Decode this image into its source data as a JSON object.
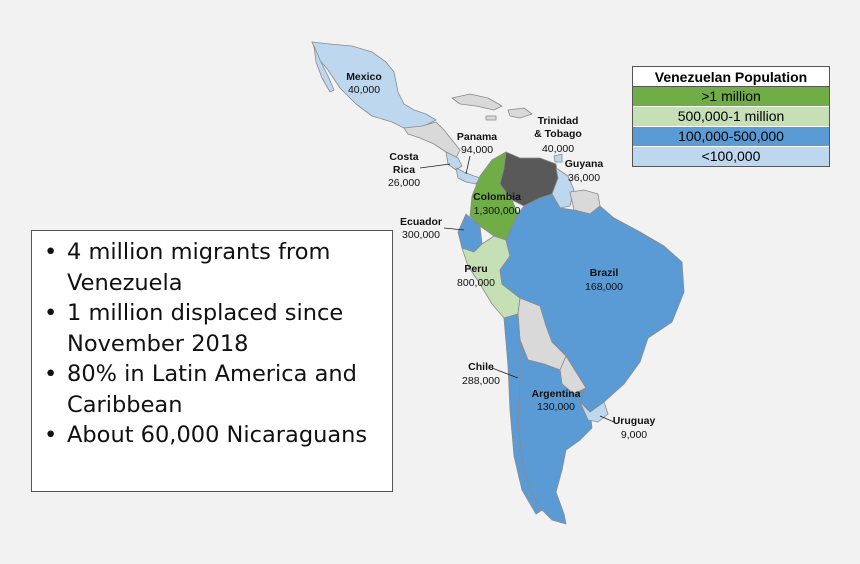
{
  "legend": {
    "title": "Venezuelan Population",
    "items": [
      {
        "label": ">1 million",
        "color": "#70ad47"
      },
      {
        "label": "500,000-1 million",
        "color": "#c5e0b4"
      },
      {
        "label": "100,000-500,000",
        "color": "#5b9bd5"
      },
      {
        "label": "<100,000",
        "color": "#bdd7ee"
      }
    ]
  },
  "colors": {
    "background": "#f2f2f2",
    "no_data": "#d9d9d9",
    "venezuela": "#595959"
  },
  "countries": {
    "mexico": {
      "name": "Mexico",
      "value": "40,000",
      "category": "<100,000"
    },
    "panama": {
      "name": "Panama",
      "value": "94,000",
      "category": "<100,000"
    },
    "costa_rica": {
      "name_line1": "Costa",
      "name_line2": "Rica",
      "value": "26,000",
      "category": "<100,000"
    },
    "trinidad": {
      "name_line1": "Trinidad",
      "name_line2": "& Tobago",
      "value": "40,000",
      "category": "<100,000"
    },
    "guyana": {
      "name": "Guyana",
      "value": "36,000",
      "category": "<100,000"
    },
    "colombia": {
      "name": "Colombia",
      "value": "1,300,000",
      "category": ">1 million"
    },
    "ecuador": {
      "name": "Ecuador",
      "value": "300,000",
      "category": "100,000-500,000"
    },
    "peru": {
      "name": "Peru",
      "value": "800,000",
      "category": "500,000-1 million"
    },
    "brazil": {
      "name": "Brazil",
      "value": "168,000",
      "category": "100,000-500,000"
    },
    "chile": {
      "name": "Chile",
      "value": "288,000",
      "category": "100,000-500,000"
    },
    "argentina": {
      "name": "Argentina",
      "value": "130,000",
      "category": "100,000-500,000"
    },
    "uruguay": {
      "name": "Uruguay",
      "value": "9,000",
      "category": "<100,000"
    }
  },
  "facts": [
    "4 million migrants from Venezuela",
    "1 million displaced since November 2018",
    "80% in Latin America and Caribbean",
    "About 60,000 Nicaraguans"
  ]
}
